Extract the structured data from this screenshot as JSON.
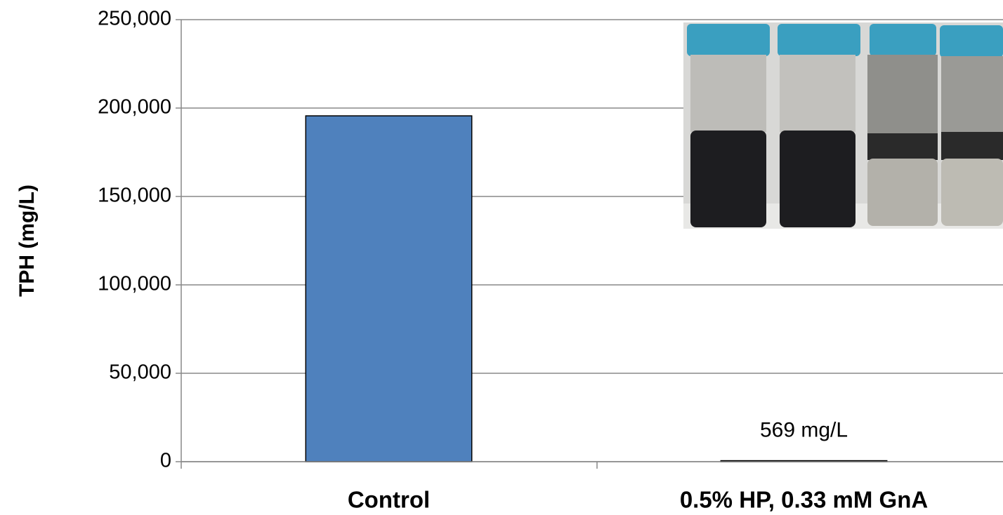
{
  "chart_data": {
    "type": "bar",
    "y_axis_title": "TPH (mg/L)",
    "categories": [
      "Control",
      "0.5% HP, 0.33 mM GnA"
    ],
    "values": [
      195600,
      569
    ],
    "value_labels": [
      null,
      "569 mg/L"
    ],
    "color": "#4f81bd",
    "ylim": [
      0,
      250000
    ],
    "yticks": [
      0,
      {
        "value": 50000,
        "label": "50,000"
      },
      {
        "value": 100000,
        "label": "100,000"
      },
      {
        "value": 150000,
        "label": "150,000"
      },
      {
        "value": 200000,
        "label": "200,000"
      },
      {
        "value": 250000,
        "label": "250,000"
      }
    ],
    "grid": true
  }
}
